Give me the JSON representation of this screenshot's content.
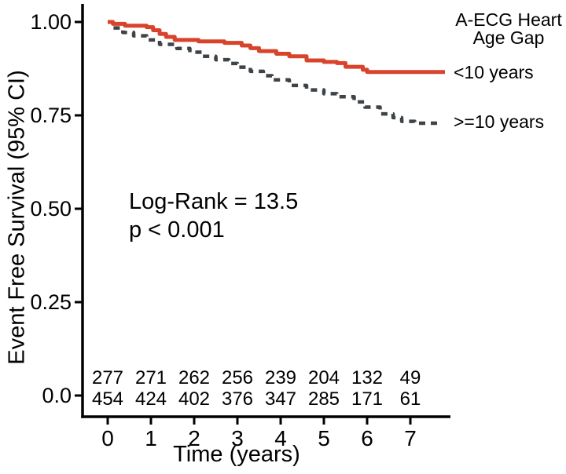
{
  "colors": {
    "curve_red": "#D8432C",
    "curve_dark": "#3E4347",
    "risk_red": "#D34A33",
    "risk_gray": "#595959",
    "axis": "#000000"
  },
  "chart_data": {
    "type": "line",
    "subtype": "kaplan-meier-step",
    "title": "",
    "xlabel": "Time (years)",
    "ylabel": "Event Free Survival (95% CI)",
    "xticks": [
      0,
      1,
      2,
      3,
      4,
      5,
      6,
      7
    ],
    "yticks": [
      {
        "value": 1.0,
        "label": "1.00"
      },
      {
        "value": 0.75,
        "label": "0.75"
      },
      {
        "value": 0.5,
        "label": "0.50"
      },
      {
        "value": 0.25,
        "label": "0.25"
      },
      {
        "value": 0.0,
        "label": "0.0"
      }
    ],
    "xlim": [
      -0.58,
      7.93
    ],
    "ylim": [
      -0.06,
      1.05
    ],
    "grid": false,
    "legend": {
      "position": "right",
      "title": "A-ECG Heart Age Gap",
      "title_lines": [
        "A-ECG Heart",
        "Age Gap"
      ]
    },
    "annotations": [
      "Log-Rank = 13.5",
      "p < 0.001"
    ],
    "series": [
      {
        "name": ">=10 years",
        "style": "dashed",
        "color": "#3E4347",
        "points": [
          [
            0,
            1.0
          ],
          [
            0.1,
            0.984
          ],
          [
            0.35,
            0.972
          ],
          [
            0.6,
            0.963
          ],
          [
            0.9,
            0.952
          ],
          [
            1.2,
            0.94
          ],
          [
            1.6,
            0.929
          ],
          [
            1.9,
            0.919
          ],
          [
            2.2,
            0.908
          ],
          [
            2.5,
            0.899
          ],
          [
            2.8,
            0.889
          ],
          [
            3.0,
            0.879
          ],
          [
            3.3,
            0.868
          ],
          [
            3.6,
            0.856
          ],
          [
            3.8,
            0.845
          ],
          [
            4.2,
            0.83
          ],
          [
            4.6,
            0.818
          ],
          [
            5.0,
            0.808
          ],
          [
            5.3,
            0.8
          ],
          [
            5.7,
            0.786
          ],
          [
            5.95,
            0.772
          ],
          [
            6.3,
            0.754
          ],
          [
            6.6,
            0.744
          ],
          [
            6.8,
            0.734
          ],
          [
            7.1,
            0.729
          ],
          [
            7.7,
            0.729
          ]
        ]
      },
      {
        "name": "<10 years",
        "style": "solid",
        "color": "#D8432C",
        "points": [
          [
            0,
            1.0
          ],
          [
            0.12,
            0.995
          ],
          [
            0.4,
            0.99
          ],
          [
            0.9,
            0.986
          ],
          [
            1.05,
            0.978
          ],
          [
            1.2,
            0.968
          ],
          [
            1.35,
            0.96
          ],
          [
            1.55,
            0.952
          ],
          [
            2.1,
            0.948
          ],
          [
            2.7,
            0.944
          ],
          [
            3.1,
            0.937
          ],
          [
            3.3,
            0.93
          ],
          [
            3.5,
            0.922
          ],
          [
            3.9,
            0.915
          ],
          [
            4.2,
            0.908
          ],
          [
            4.6,
            0.897
          ],
          [
            5.0,
            0.893
          ],
          [
            5.3,
            0.89
          ],
          [
            5.5,
            0.88
          ],
          [
            5.9,
            0.872
          ],
          [
            6.0,
            0.866
          ],
          [
            7.8,
            0.866
          ]
        ]
      }
    ],
    "risk_table": {
      "times": [
        0,
        1,
        2,
        3,
        4,
        5,
        6,
        7
      ],
      "rows": [
        {
          "name": "<10 years",
          "color": "#D34A33",
          "values": [
            "277",
            "271",
            "262",
            "256",
            "239",
            "204",
            "132",
            "49"
          ]
        },
        {
          "name": ">=10 years",
          "color": "#595959",
          "values": [
            "454",
            "424",
            "402",
            "376",
            "347",
            "285",
            "171",
            "61"
          ]
        }
      ]
    }
  }
}
